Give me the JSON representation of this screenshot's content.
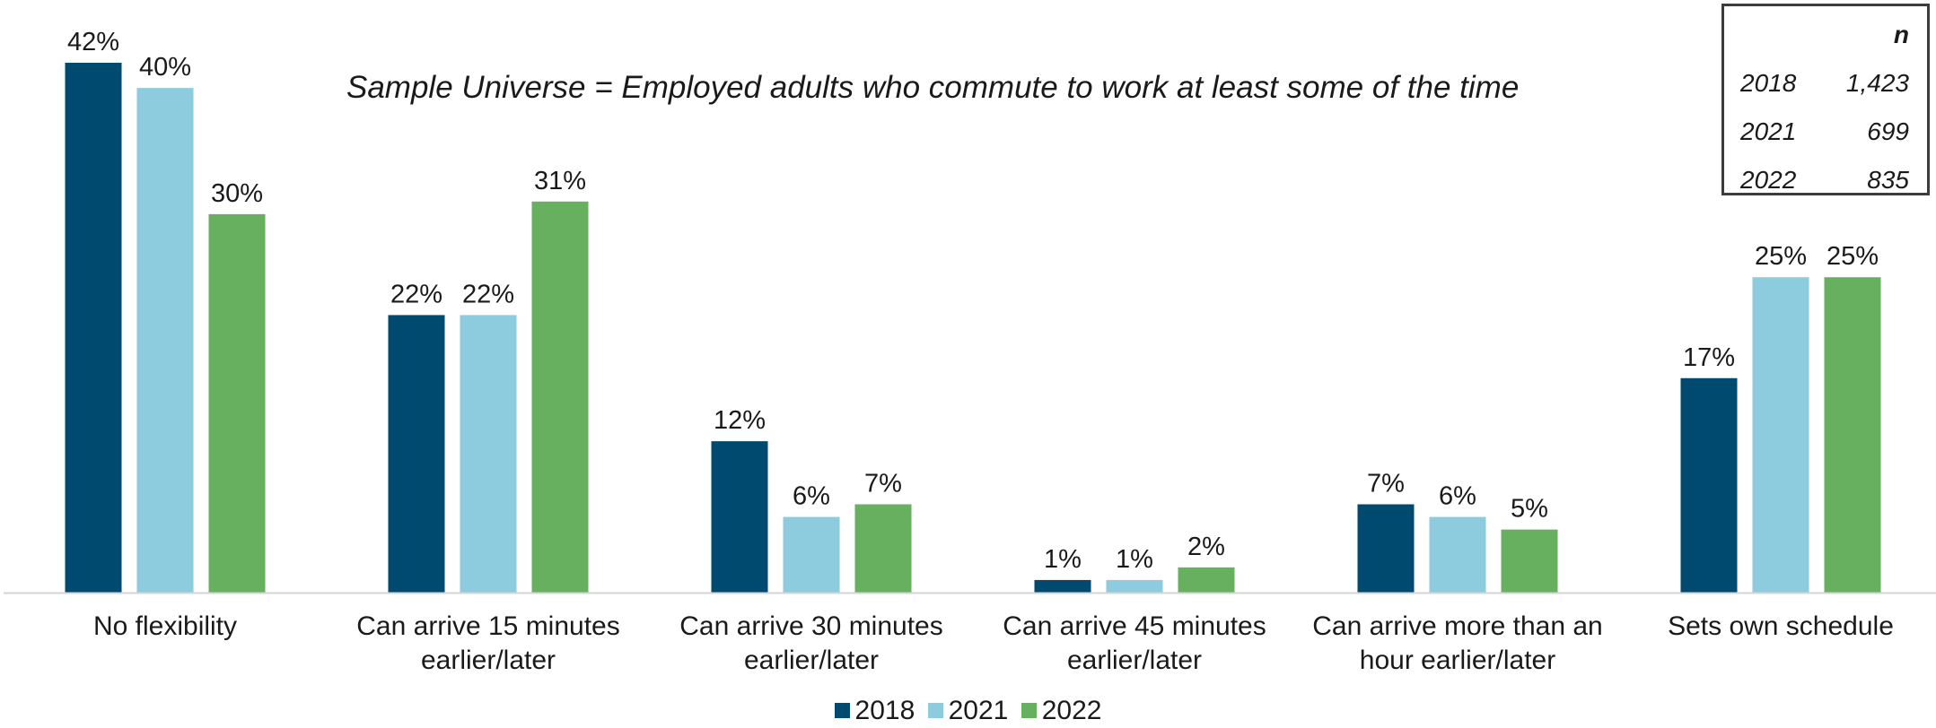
{
  "chart_data": {
    "type": "bar",
    "subtitle": "Sample Universe = Employed adults who commute to work at least some of the time",
    "categories": [
      "No flexibility",
      "Can arrive 15 minutes\nearlier/later",
      "Can arrive 30 minutes\nearlier/later",
      "Can arrive 45 minutes\nearlier/later",
      "Can arrive more than an\nhour earlier/later",
      "Sets own schedule"
    ],
    "series": [
      {
        "name": "2018",
        "color": "#004a6f",
        "values": [
          42,
          22,
          12,
          1,
          7,
          17
        ],
        "labels": [
          "42%",
          "22%",
          "12%",
          "1%",
          "7%",
          "17%"
        ]
      },
      {
        "name": "2021",
        "color": "#8dcbdf",
        "values": [
          40,
          22,
          6,
          1,
          6,
          25
        ],
        "labels": [
          "40%",
          "22%",
          "6%",
          "1%",
          "6%",
          "25%"
        ]
      },
      {
        "name": "2022",
        "color": "#66b060",
        "values": [
          30,
          31,
          7,
          2,
          5,
          25
        ],
        "labels": [
          "30%",
          "31%",
          "7%",
          "2%",
          "5%",
          "25%"
        ]
      }
    ],
    "ylim": [
      0,
      42
    ],
    "grid": false,
    "legend": "bottom-center"
  },
  "sample_table": {
    "header": "n",
    "rows": [
      {
        "year": "2018",
        "n": "1,423"
      },
      {
        "year": "2021",
        "n": "699"
      },
      {
        "year": "2022",
        "n": "835"
      }
    ]
  }
}
